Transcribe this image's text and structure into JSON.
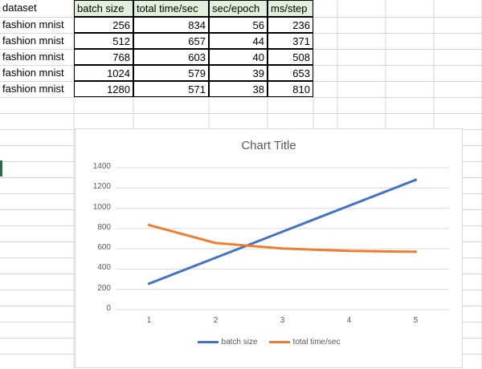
{
  "sheet": {
    "headers": [
      "dataset",
      "batch size",
      "total time/sec",
      "sec/epoch",
      "ms/step"
    ],
    "rows": [
      [
        "fashion mnist",
        "256",
        "834",
        "56",
        "236"
      ],
      [
        "fashion mnist",
        "512",
        "657",
        "44",
        "371"
      ],
      [
        "fashion mnist",
        "768",
        "603",
        "40",
        "508"
      ],
      [
        "fashion mnist",
        "1024",
        "579",
        "39",
        "653"
      ],
      [
        "fashion mnist",
        "1280",
        "571",
        "38",
        "810"
      ]
    ]
  },
  "colors": {
    "header_fill": "#e2efda",
    "series_1": "#4472c4",
    "series_2": "#ed7d31",
    "gridline": "#d9d9d9",
    "cell_gridline": "#d4d4d4"
  },
  "chart_data": {
    "type": "line",
    "title": "Chart Title",
    "x": [
      1,
      2,
      3,
      4,
      5
    ],
    "ylim": [
      0,
      1400
    ],
    "yticks": [
      0,
      200,
      400,
      600,
      800,
      1000,
      1200,
      1400
    ],
    "grid": true,
    "legend_position": "bottom",
    "series": [
      {
        "name": "batch size",
        "values": [
          256,
          512,
          768,
          1024,
          1280
        ],
        "color": "#4472c4"
      },
      {
        "name": "total time/sec",
        "values": [
          834,
          657,
          603,
          579,
          571
        ],
        "color": "#ed7d31"
      }
    ]
  }
}
